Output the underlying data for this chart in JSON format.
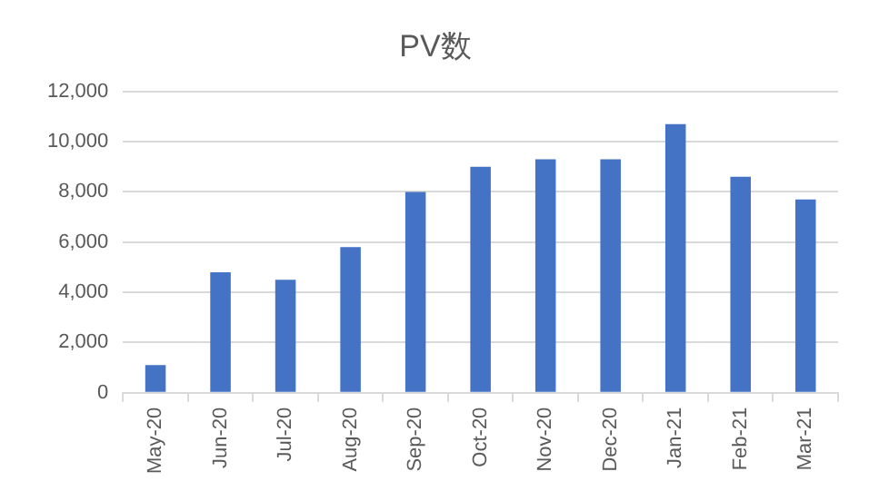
{
  "chart_data": {
    "type": "bar",
    "title": "PV数",
    "categories": [
      "May-20",
      "Jun-20",
      "Jul-20",
      "Aug-20",
      "Sep-20",
      "Oct-20",
      "Nov-20",
      "Dec-20",
      "Jan-21",
      "Feb-21",
      "Mar-21"
    ],
    "values": [
      1100,
      4800,
      4500,
      5800,
      8000,
      9000,
      9300,
      9300,
      10700,
      8600,
      7700
    ],
    "color": "#4472c4",
    "ylim": [
      0,
      12000
    ],
    "yticks": [
      {
        "value": 0,
        "label": "0"
      },
      {
        "value": 2000,
        "label": "2,000"
      },
      {
        "value": 4000,
        "label": "4,000"
      },
      {
        "value": 6000,
        "label": "6,000"
      },
      {
        "value": 8000,
        "label": "8,000"
      },
      {
        "value": 10000,
        "label": "10,000"
      },
      {
        "value": 12000,
        "label": "12,000"
      }
    ],
    "grid": "y"
  }
}
